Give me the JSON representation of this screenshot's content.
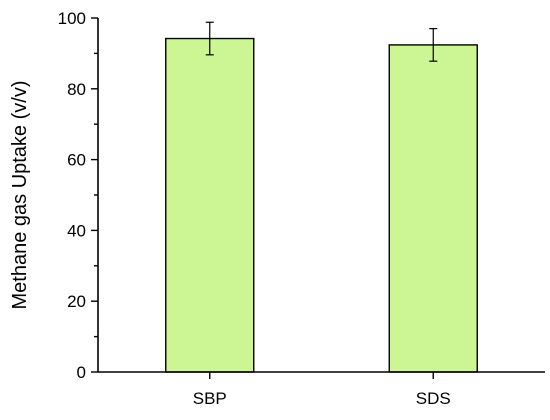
{
  "chart_data": {
    "type": "bar",
    "categories": [
      "SBP",
      "SDS"
    ],
    "values": [
      94.2,
      92.4
    ],
    "errors": [
      4.6,
      4.6
    ],
    "ylabel": "Methane gas Uptake (v/v)",
    "xlabel": "",
    "ylim": [
      0,
      100
    ],
    "yticks": [
      0,
      20,
      40,
      60,
      80,
      100
    ],
    "y_minor_step": 10,
    "grid": false,
    "colors": {
      "bar_fill": "#ccf593",
      "bar_stroke": "#000000",
      "axis": "#000000"
    }
  }
}
